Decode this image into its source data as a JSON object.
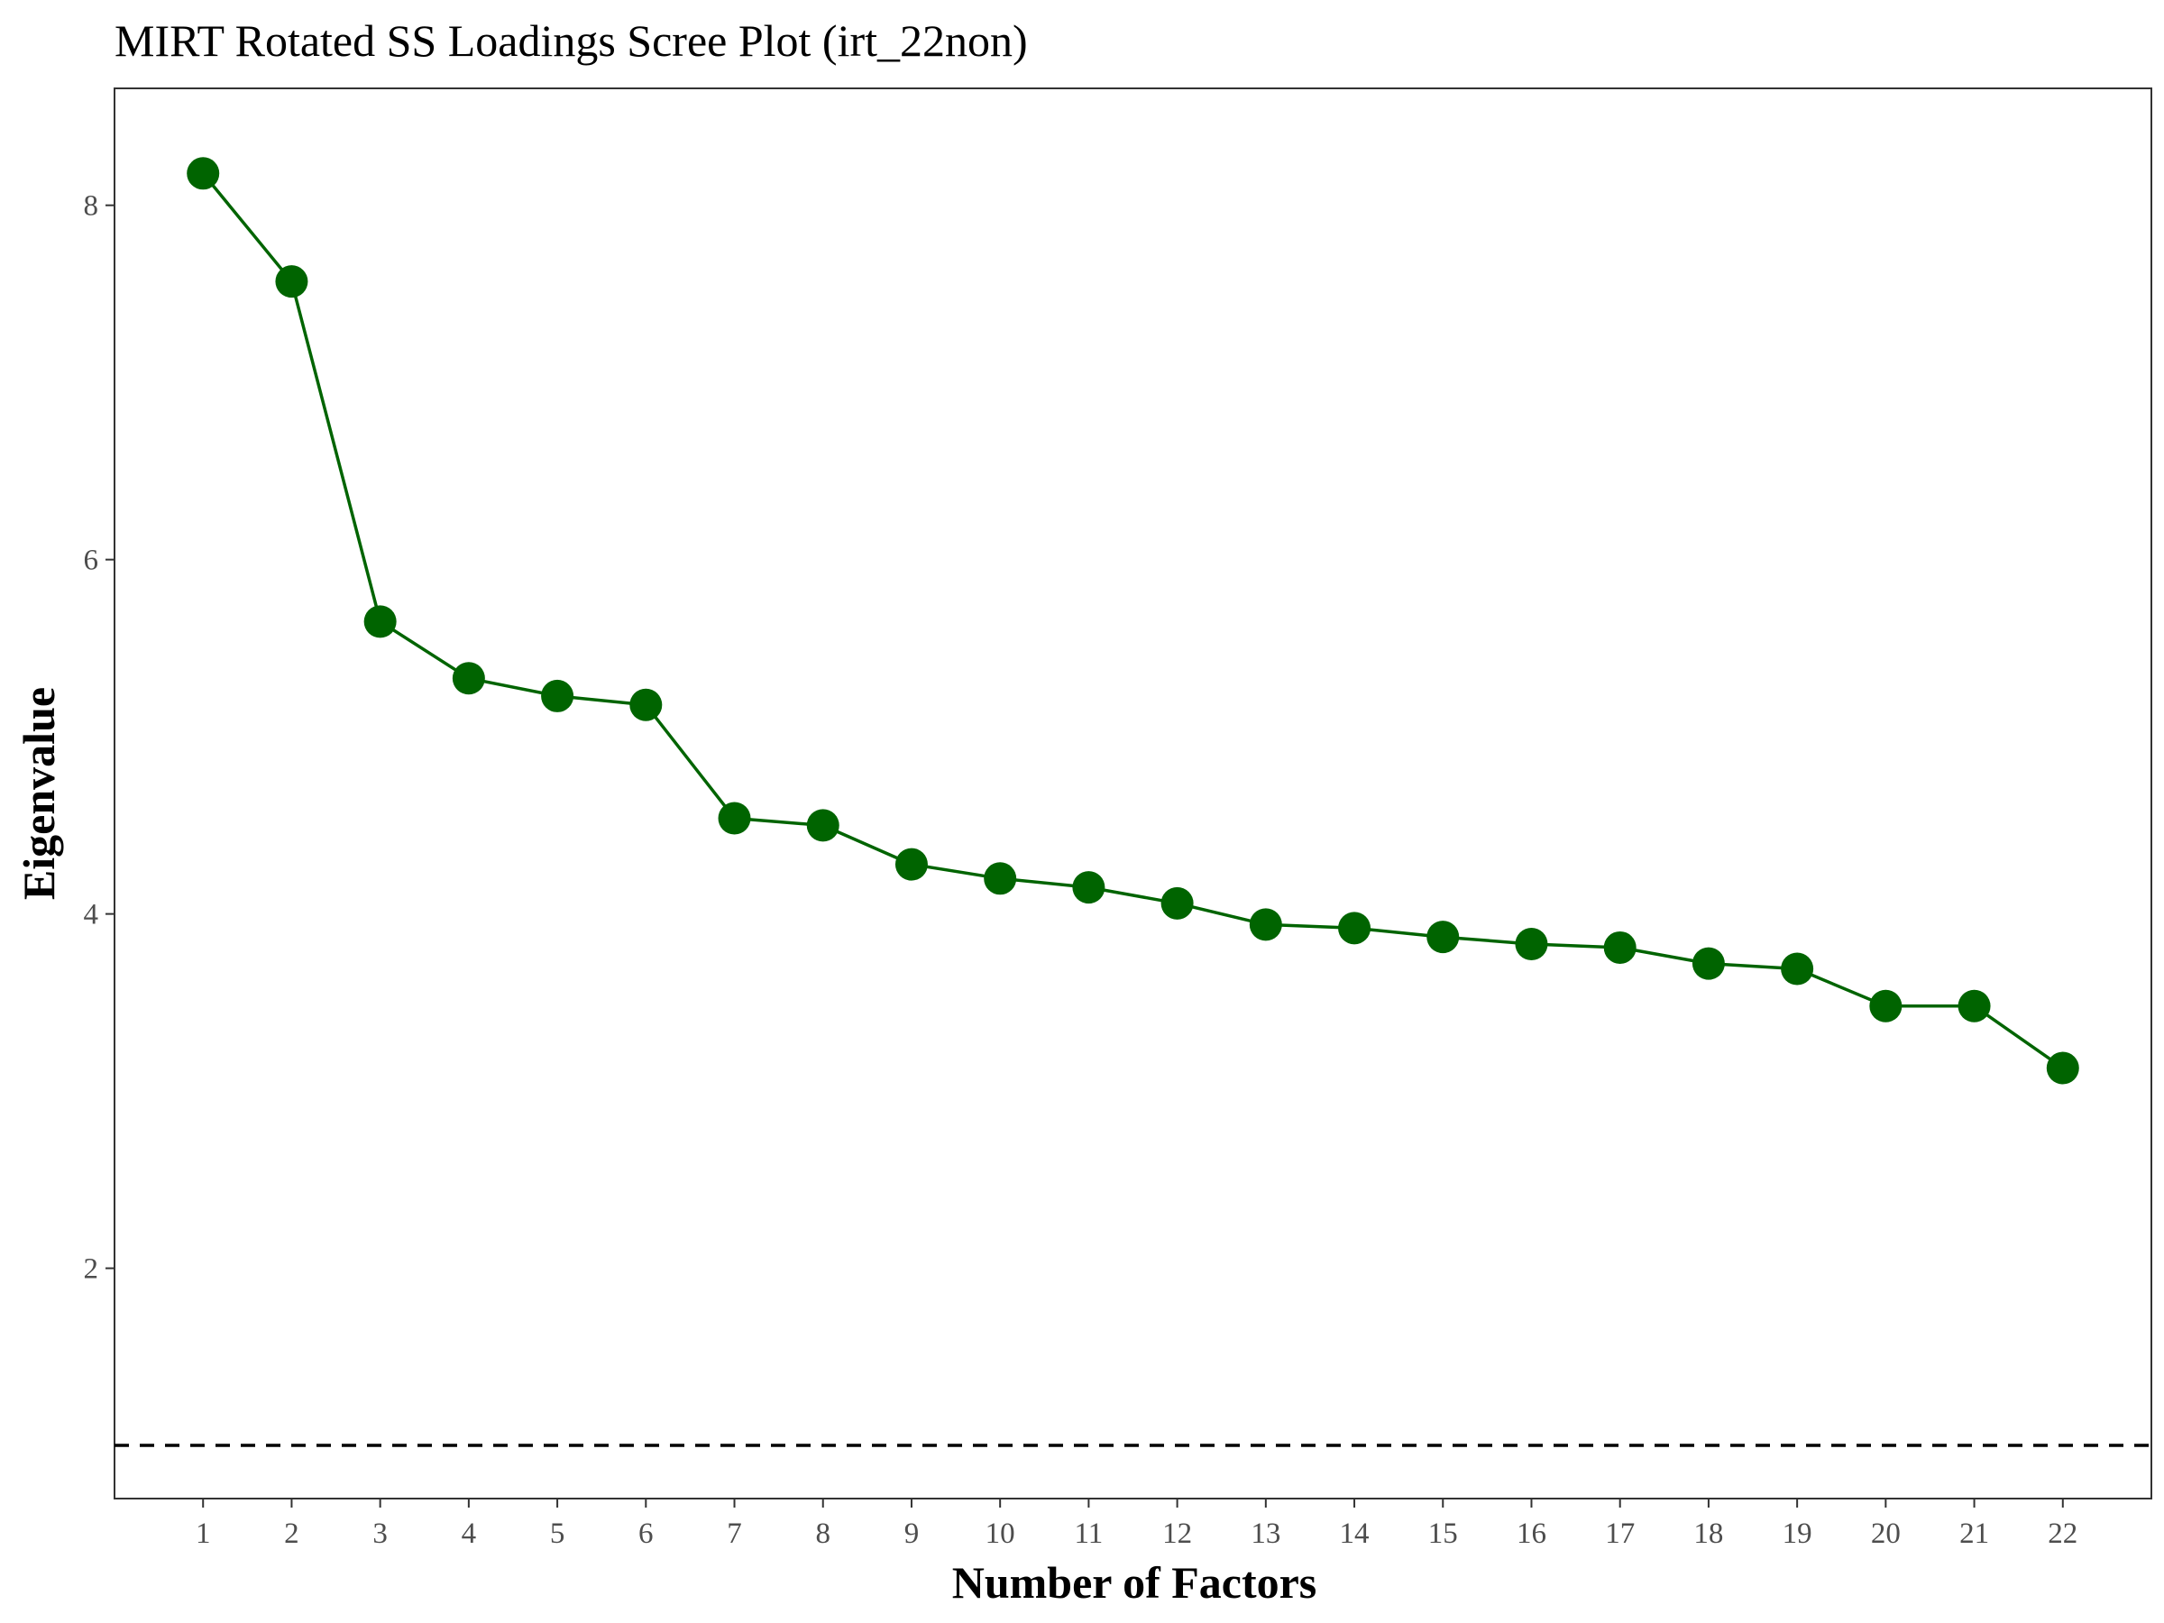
{
  "chart_data": {
    "type": "line",
    "title": "MIRT Rotated SS Loadings Scree Plot (irt_22non)",
    "xlabel": "Number of Factors",
    "ylabel": "Eigenvalue",
    "x": [
      1,
      2,
      3,
      4,
      5,
      6,
      7,
      8,
      9,
      10,
      11,
      12,
      13,
      14,
      15,
      16,
      17,
      18,
      19,
      20,
      21,
      22
    ],
    "values": [
      8.18,
      7.57,
      5.65,
      5.33,
      5.23,
      5.18,
      4.54,
      4.5,
      4.28,
      4.2,
      4.15,
      4.06,
      3.94,
      3.92,
      3.87,
      3.83,
      3.81,
      3.72,
      3.69,
      3.48,
      3.48,
      3.13
    ],
    "xlim": [
      0,
      23
    ],
    "ylim": [
      0.7,
      8.66
    ],
    "yticks": [
      2,
      4,
      6,
      8
    ],
    "xticks": [
      1,
      2,
      3,
      4,
      5,
      6,
      7,
      8,
      9,
      10,
      11,
      12,
      13,
      14,
      15,
      16,
      17,
      18,
      19,
      20,
      21,
      22
    ],
    "reference_line": {
      "y": 1,
      "style": "dashed",
      "color": "#000000"
    },
    "line_color": "#006400",
    "point_color": "#006400",
    "grid": false,
    "legend": "none"
  }
}
